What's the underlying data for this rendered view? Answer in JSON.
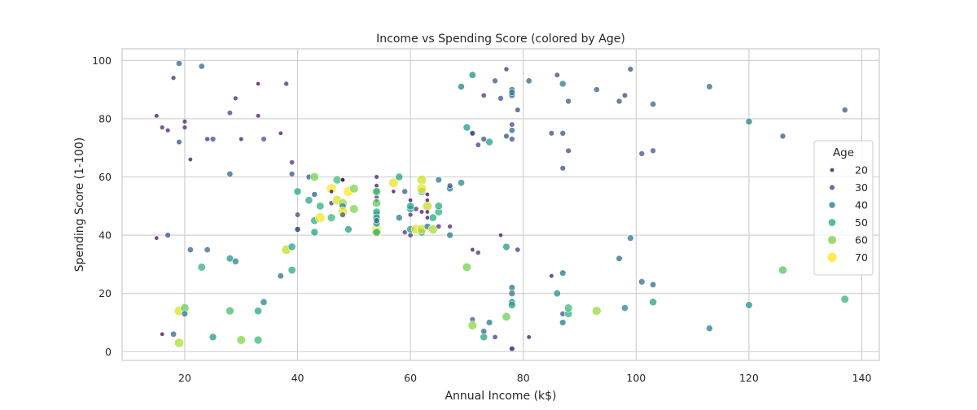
{
  "chart_data": {
    "type": "scatter",
    "title": "Income vs Spending Score (colored by Age)",
    "xlabel": "Annual Income (k$)",
    "ylabel": "Spending Score (1-100)",
    "xlim": [
      8.9,
      143.1
    ],
    "ylim": [
      -3.0,
      104.0
    ],
    "x_ticks": [
      "20",
      "40",
      "60",
      "80",
      "100",
      "120",
      "140"
    ],
    "x_tick_values": [
      20,
      40,
      60,
      80,
      100,
      120,
      140
    ],
    "y_ticks": [
      "0",
      "20",
      "40",
      "60",
      "80",
      "100"
    ],
    "y_tick_values": [
      0,
      20,
      40,
      60,
      80,
      100
    ],
    "grid": true,
    "legend": {
      "title": "Age",
      "placement": "center-right",
      "entries": [
        {
          "label": "20",
          "age": 20
        },
        {
          "label": "30",
          "age": 30
        },
        {
          "label": "40",
          "age": 40
        },
        {
          "label": "50",
          "age": 50
        },
        {
          "label": "60",
          "age": 60
        },
        {
          "label": "70",
          "age": 70
        }
      ]
    },
    "colormap": "viridis",
    "age_range": [
      18,
      70
    ],
    "points": [
      [
        15,
        39,
        19
      ],
      [
        15,
        81,
        21
      ],
      [
        16,
        6,
        20
      ],
      [
        16,
        77,
        23
      ],
      [
        17,
        40,
        31
      ],
      [
        17,
        76,
        22
      ],
      [
        18,
        6,
        35
      ],
      [
        18,
        94,
        23
      ],
      [
        19,
        3,
        64
      ],
      [
        19,
        72,
        30
      ],
      [
        19,
        14,
        67
      ],
      [
        19,
        99,
        35
      ],
      [
        20,
        15,
        58
      ],
      [
        20,
        77,
        24
      ],
      [
        20,
        13,
        37
      ],
      [
        20,
        79,
        22
      ],
      [
        21,
        35,
        35
      ],
      [
        21,
        66,
        20
      ],
      [
        23,
        29,
        52
      ],
      [
        23,
        98,
        35
      ],
      [
        24,
        35,
        35
      ],
      [
        24,
        73,
        25
      ],
      [
        25,
        5,
        46
      ],
      [
        25,
        73,
        31
      ],
      [
        28,
        82,
        29
      ],
      [
        28,
        14,
        54
      ],
      [
        28,
        61,
        35
      ],
      [
        28,
        32,
        45
      ],
      [
        29,
        31,
        40
      ],
      [
        29,
        87,
        23
      ],
      [
        30,
        4,
        60
      ],
      [
        30,
        73,
        21
      ],
      [
        33,
        4,
        53
      ],
      [
        33,
        92,
        18
      ],
      [
        33,
        14,
        49
      ],
      [
        33,
        81,
        21
      ],
      [
        34,
        17,
        42
      ],
      [
        34,
        73,
        30
      ],
      [
        37,
        26,
        36
      ],
      [
        37,
        75,
        20
      ],
      [
        38,
        35,
        65
      ],
      [
        38,
        92,
        24
      ],
      [
        39,
        36,
        48
      ],
      [
        39,
        61,
        31
      ],
      [
        39,
        28,
        50
      ],
      [
        39,
        65,
        27
      ],
      [
        40,
        55,
        49
      ],
      [
        40,
        47,
        29
      ],
      [
        40,
        42,
        31
      ],
      [
        40,
        42,
        33
      ],
      [
        42,
        52,
        49
      ],
      [
        42,
        60,
        31
      ],
      [
        43,
        54,
        33
      ],
      [
        43,
        60,
        59
      ],
      [
        43,
        45,
        50
      ],
      [
        43,
        41,
        47
      ],
      [
        44,
        50,
        51
      ],
      [
        44,
        46,
        69
      ],
      [
        46,
        51,
        27
      ],
      [
        46,
        46,
        53
      ],
      [
        46,
        56,
        70
      ],
      [
        46,
        55,
        19
      ],
      [
        47,
        52,
        67
      ],
      [
        47,
        59,
        54
      ],
      [
        48,
        51,
        63
      ],
      [
        48,
        59,
        18
      ],
      [
        48,
        50,
        43
      ],
      [
        48,
        48,
        68
      ],
      [
        48,
        59,
        19
      ],
      [
        48,
        47,
        32
      ],
      [
        49,
        55,
        70
      ],
      [
        49,
        42,
        47
      ],
      [
        50,
        49,
        60
      ],
      [
        50,
        56,
        60
      ],
      [
        54,
        47,
        45
      ],
      [
        54,
        53,
        23
      ],
      [
        54,
        48,
        49
      ],
      [
        54,
        52,
        21
      ],
      [
        54,
        42,
        70
      ],
      [
        54,
        51,
        57
      ],
      [
        54,
        55,
        38
      ],
      [
        54,
        41,
        67
      ],
      [
        54,
        44,
        46
      ],
      [
        54,
        57,
        21
      ],
      [
        54,
        46,
        48
      ],
      [
        54,
        55,
        55
      ],
      [
        54,
        60,
        22
      ],
      [
        54,
        45,
        34
      ],
      [
        54,
        41,
        50
      ],
      [
        57,
        58,
        68
      ],
      [
        57,
        55,
        18
      ],
      [
        58,
        60,
        48
      ],
      [
        58,
        46,
        40
      ],
      [
        59,
        55,
        32
      ],
      [
        59,
        41,
        24
      ],
      [
        60,
        49,
        47
      ],
      [
        60,
        40,
        27
      ],
      [
        60,
        42,
        48
      ],
      [
        60,
        52,
        20
      ],
      [
        60,
        47,
        23
      ],
      [
        60,
        50,
        49
      ],
      [
        61,
        42,
        67
      ],
      [
        61,
        49,
        26
      ],
      [
        62,
        41,
        49
      ],
      [
        62,
        48,
        21
      ],
      [
        62,
        59,
        66
      ],
      [
        62,
        55,
        54
      ],
      [
        62,
        56,
        68
      ],
      [
        62,
        42,
        66
      ],
      [
        63,
        50,
        65
      ],
      [
        63,
        46,
        19
      ],
      [
        63,
        43,
        38
      ],
      [
        63,
        48,
        19
      ],
      [
        63,
        52,
        18
      ],
      [
        63,
        54,
        19
      ],
      [
        64,
        42,
        63
      ],
      [
        64,
        46,
        49
      ],
      [
        65,
        48,
        51
      ],
      [
        65,
        50,
        50
      ],
      [
        65,
        43,
        27
      ],
      [
        65,
        59,
        38
      ],
      [
        67,
        56,
        40
      ],
      [
        67,
        40,
        39
      ],
      [
        67,
        43,
        23
      ],
      [
        67,
        57,
        31
      ],
      [
        69,
        58,
        43
      ],
      [
        69,
        91,
        40
      ],
      [
        70,
        29,
        59
      ],
      [
        70,
        77,
        47
      ],
      [
        71,
        35,
        20
      ],
      [
        71,
        95,
        44
      ],
      [
        71,
        11,
        32
      ],
      [
        71,
        75,
        19
      ],
      [
        71,
        9,
        61
      ],
      [
        71,
        75,
        32
      ],
      [
        72,
        34,
        25
      ],
      [
        72,
        71,
        28
      ],
      [
        73,
        5,
        48
      ],
      [
        73,
        88,
        27
      ],
      [
        73,
        7,
        34
      ],
      [
        73,
        73,
        32
      ],
      [
        74,
        10,
        38
      ],
      [
        74,
        72,
        47
      ],
      [
        75,
        5,
        27
      ],
      [
        75,
        93,
        32
      ],
      [
        76,
        40,
        19
      ],
      [
        76,
        87,
        32
      ],
      [
        77,
        12,
        58
      ],
      [
        77,
        97,
        25
      ],
      [
        77,
        36,
        45
      ],
      [
        77,
        74,
        31
      ],
      [
        78,
        22,
        38
      ],
      [
        78,
        90,
        35
      ],
      [
        78,
        17,
        41
      ],
      [
        78,
        88,
        36
      ],
      [
        78,
        20,
        40
      ],
      [
        78,
        76,
        35
      ],
      [
        78,
        16,
        47
      ],
      [
        78,
        89,
        38
      ],
      [
        78,
        1,
        29
      ],
      [
        78,
        78,
        28
      ],
      [
        78,
        1,
        30
      ],
      [
        78,
        73,
        32
      ],
      [
        79,
        35,
        27
      ],
      [
        79,
        83,
        29
      ],
      [
        81,
        5,
        20
      ],
      [
        81,
        93,
        34
      ],
      [
        85,
        26,
        21
      ],
      [
        85,
        75,
        30
      ],
      [
        86,
        20,
        44
      ],
      [
        86,
        95,
        29
      ],
      [
        87,
        27,
        37
      ],
      [
        87,
        63,
        30
      ],
      [
        87,
        13,
        31
      ],
      [
        87,
        75,
        32
      ],
      [
        87,
        10,
        38
      ],
      [
        87,
        92,
        40
      ],
      [
        88,
        13,
        51
      ],
      [
        88,
        86,
        32
      ],
      [
        88,
        15,
        53
      ],
      [
        88,
        69,
        30
      ],
      [
        93,
        14,
        62
      ],
      [
        93,
        90,
        33
      ],
      [
        97,
        32,
        36
      ],
      [
        97,
        86,
        32
      ],
      [
        98,
        15,
        42
      ],
      [
        98,
        88,
        29
      ],
      [
        99,
        39,
        39
      ],
      [
        99,
        97,
        32
      ],
      [
        101,
        24,
        38
      ],
      [
        101,
        68,
        31
      ],
      [
        103,
        17,
        48
      ],
      [
        103,
        85,
        35
      ],
      [
        103,
        23,
        36
      ],
      [
        103,
        69,
        32
      ],
      [
        113,
        8,
        40
      ],
      [
        113,
        91,
        37
      ],
      [
        120,
        16,
        44
      ],
      [
        120,
        79,
        41
      ],
      [
        126,
        28,
        56
      ],
      [
        126,
        74,
        32
      ],
      [
        137,
        18,
        52
      ],
      [
        137,
        83,
        33
      ]
    ]
  }
}
